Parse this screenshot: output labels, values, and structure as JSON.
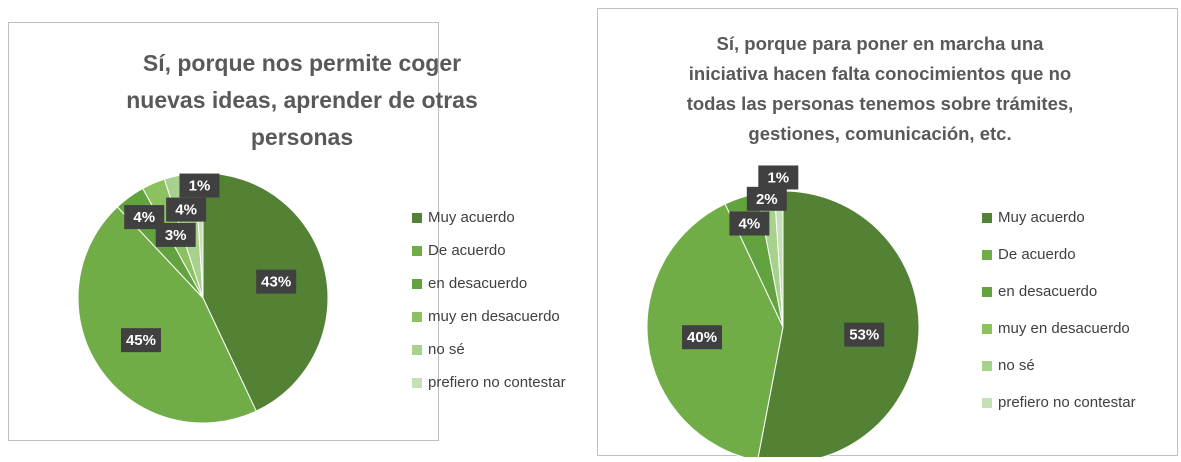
{
  "chart_data": [
    {
      "type": "pie",
      "title": [
        "Sí, porque nos permite coger",
        "nuevas ideas, aprender de otras",
        "personas"
      ],
      "categories": [
        "Muy acuerdo",
        "De acuerdo",
        "en desacuerdo",
        "muy en desacuerdo",
        "no sé",
        "prefiero no contestar"
      ],
      "values": [
        43,
        45,
        4,
        3,
        4,
        1
      ],
      "value_labels": [
        "43%",
        "45%",
        "4%",
        "3%",
        "4%",
        "1%"
      ],
      "colors": [
        "#548235",
        "#70ad47",
        "#62a340",
        "#8cc15f",
        "#a9d18e",
        "#c5e0b4"
      ]
    },
    {
      "type": "pie",
      "title": [
        "Sí, porque para poner en marcha una",
        "iniciativa hacen falta conocimientos que no",
        "todas las personas tenemos sobre trámites,",
        "gestiones, comunicación,  etc."
      ],
      "categories": [
        "Muy acuerdo",
        "De acuerdo",
        "en desacuerdo",
        "muy en desacuerdo",
        "no sé",
        "prefiero no contestar"
      ],
      "values": [
        53,
        40,
        4,
        0,
        2,
        1
      ],
      "value_labels": [
        "53%",
        "40%",
        "4%",
        null,
        "2%",
        "1%"
      ],
      "colors": [
        "#548235",
        "#70ad47",
        "#62a340",
        "#8cc15f",
        "#a9d18e",
        "#c5e0b4"
      ]
    }
  ]
}
